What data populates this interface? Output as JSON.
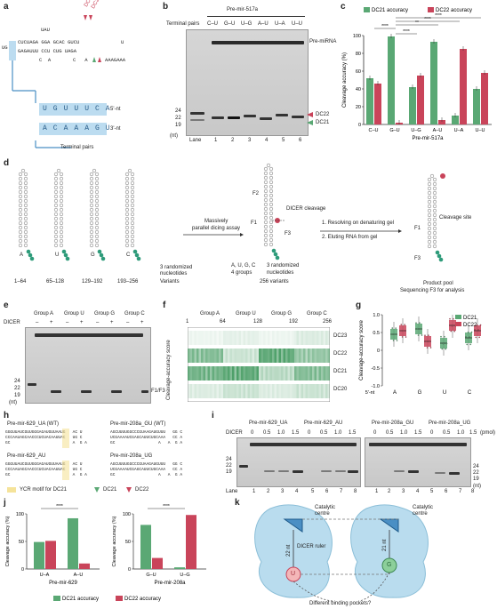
{
  "panels": {
    "a": "a",
    "b": "b",
    "c": "c",
    "d": "d",
    "e": "e",
    "f": "f",
    "g": "g",
    "h": "h",
    "i": "i",
    "j": "j",
    "k": "k"
  },
  "a": {
    "dc21": "DC21",
    "dc22": "DC22",
    "seq_top": "CUCUAGA GGA GCAC GUCU",
    "seq_bot": "GAGAUUU CCU CUG UAGA",
    "loop": "UAU",
    "u_right": "U",
    "left": "UG",
    "ca": "C  A",
    "ca2": "C   A",
    "aaa": "AAAGAAA",
    "five": "5'-nt",
    "three": "3'-nt",
    "terminal": "Terminal pairs"
  },
  "b": {
    "title": "Pre-mir-517a",
    "terminal": "Terminal pairs",
    "pairs": [
      "C–U",
      "G–U",
      "U–G",
      "A–U",
      "U–A",
      "U–U"
    ],
    "lanes": [
      "1",
      "2",
      "3",
      "4",
      "5",
      "6"
    ],
    "lane": "Lane",
    "nt": "(nt)",
    "m24": "24",
    "m22": "22",
    "m19": "19",
    "pre": "Pre-miRNA",
    "dc22": "DC22",
    "dc21": "DC21"
  },
  "c": {
    "chart_data": {
      "type": "bar",
      "categories": [
        "C–U",
        "G–U",
        "U–G",
        "A–U",
        "U–A",
        "U–U"
      ],
      "series": [
        {
          "name": "DC21 accuracy",
          "values": [
            52,
            99,
            42,
            93,
            10,
            40
          ]
        },
        {
          "name": "DC22 accuracy",
          "values": [
            46,
            2,
            55,
            5,
            85,
            58
          ]
        }
      ],
      "ylabel": "Cleavage accuracy (%)",
      "xlabel": "Pre-mir-517a",
      "ylim": [
        0,
        100
      ],
      "yticks": [
        "0",
        "20",
        "40",
        "60",
        "80",
        "100"
      ],
      "sig": "****",
      "sig2": "**"
    },
    "colors": {
      "dc21": "#5aa874",
      "dc22": "#c9445a"
    }
  },
  "d": {
    "massive": "Massively",
    "parallel": "parallel dicing assay",
    "resolve": "1. Resolving on denaturing  gel",
    "elute": "2. Eluting RNA from gel",
    "dicer": "DICER cleavage",
    "cleavage": "Cleavage site",
    "f1": "F1",
    "f2": "F2",
    "f3": "F3",
    "f1b": "F1",
    "f3b": "F3",
    "nucs": [
      "A",
      "U",
      "G",
      "C"
    ],
    "ranges": [
      "1–64",
      "65–128",
      "129–192",
      "193–256"
    ],
    "rand1": "3 randomized",
    "rand1b": "nucleotides",
    "variants": "Variants",
    "augc": "A, U, G, C",
    "groups4": "4 groups",
    "rand2": "3 randomized",
    "rand2b": "nucleotides",
    "v256": "256 variants",
    "pool": "Product pool",
    "seqf3": "Sequencing F3 for analysis"
  },
  "e": {
    "groups": [
      "Group A",
      "Group U",
      "Group G",
      "Group C"
    ],
    "dicer": "DICER",
    "minus": "–",
    "plus": "+",
    "m24": "24",
    "m22": "22",
    "m19": "19",
    "nt": "(nt)",
    "f1f3": "F1/F3"
  },
  "f": {
    "groups": [
      "Group A",
      "Group U",
      "Group G",
      "Group C"
    ],
    "ticks": [
      "1",
      "64",
      "128",
      "192",
      "256"
    ],
    "rows": [
      "DC23",
      "DC22",
      "DC21",
      "DC20"
    ],
    "ylabel": "Cleavage-accuracy score"
  },
  "g": {
    "chart_data": {
      "type": "box",
      "categories": [
        "A",
        "G",
        "U",
        "C"
      ],
      "xlabel": "5'-nt",
      "ylabel": "Cleavage-accuracy score",
      "ylim": [
        -1.0,
        1.0
      ],
      "yticks": [
        "1.0",
        "0.5",
        "0",
        "-0.5",
        "-1.0"
      ],
      "series": [
        {
          "name": "DC21",
          "medians": [
            0.45,
            0.6,
            0.2,
            0.35
          ]
        },
        {
          "name": "DC22",
          "medians": [
            0.55,
            0.25,
            0.7,
            0.55
          ]
        }
      ]
    },
    "legend": [
      "DC21",
      "DC22"
    ]
  },
  "h": {
    "t1": "Pre-mir-629_UA (WT)",
    "t2": "Pre-mir-208a_GU (WT)",
    "t3": "Pre-mir-629_AU",
    "t4": "Pre-mir-208a_UG",
    "s1a": "GGGUUAUCGUUGGGAGAUGUUAAUG   AC U",
    "s1b": "CCCAAUAGCAACCCUCUACAAUUAC   UG C",
    "s1c": "GC                          A  G A",
    "s2a": "AGCUUUUGGCCCGUAAGAUGUUU   GG C",
    "s2b": "UCGAAAAUCGAGCAUUCUGCAAA   CC A",
    "s2c": "GC                  A   A  G A",
    "ycr": "YCR motif for DC21",
    "dc21": "DC21",
    "dc22": "DC22"
  },
  "i": {
    "g1": "Pre-mir-629_UA",
    "g2": "Pre-mir-629_AU",
    "g3": "Pre-mir-208a_GU",
    "g4": "Pre-mir-208a_UG",
    "dicer": "DICER",
    "conc": [
      "0",
      "0.5",
      "1.0",
      "1.5",
      "0",
      "0.5",
      "1.0",
      "1.5"
    ],
    "pmol": "(pmol)",
    "lanes": [
      "1",
      "2",
      "3",
      "4",
      "5",
      "6",
      "7",
      "8"
    ],
    "lane": "Lane",
    "m24": "24",
    "m22": "22",
    "m19": "19",
    "nt": "(nt)"
  },
  "j": {
    "chart_data": [
      {
        "type": "bar",
        "title": "",
        "xlabel": "Pre-mir-629",
        "categories": [
          "U–A",
          "A–U"
        ],
        "series": [
          {
            "name": "DC21 accuracy",
            "values": [
              49,
              92
            ]
          },
          {
            "name": "DC22 accuracy",
            "values": [
              51,
              10
            ]
          }
        ],
        "ylabel": "Cleavage accuracy (%)",
        "ylim": [
          0,
          100
        ],
        "yticks": [
          "0",
          "50",
          "100"
        ]
      },
      {
        "type": "bar",
        "title": "",
        "xlabel": "Pre-mir-208a",
        "categories": [
          "G–U",
          "U–G"
        ],
        "series": [
          {
            "name": "DC21 accuracy",
            "values": [
              80,
              3
            ]
          },
          {
            "name": "DC22 accuracy",
            "values": [
              20,
              98
            ]
          }
        ],
        "ylabel": "Cleavage accuracy (%)",
        "ylim": [
          0,
          100
        ],
        "yticks": [
          "0",
          "50",
          "100"
        ]
      }
    ],
    "sig": "****",
    "legend": [
      "DC21 accuracy",
      "DC22 accuracy"
    ]
  },
  "k": {
    "cat1": "Catalytic",
    "cat1b": "centre",
    "cat2": "Catalytic",
    "cat2b": "centre",
    "nt22": "22 nt",
    "nt21": "21 nt",
    "ruler": "DICER ruler",
    "u": "U",
    "g": "G",
    "pockets": "Different binding pockets?"
  }
}
